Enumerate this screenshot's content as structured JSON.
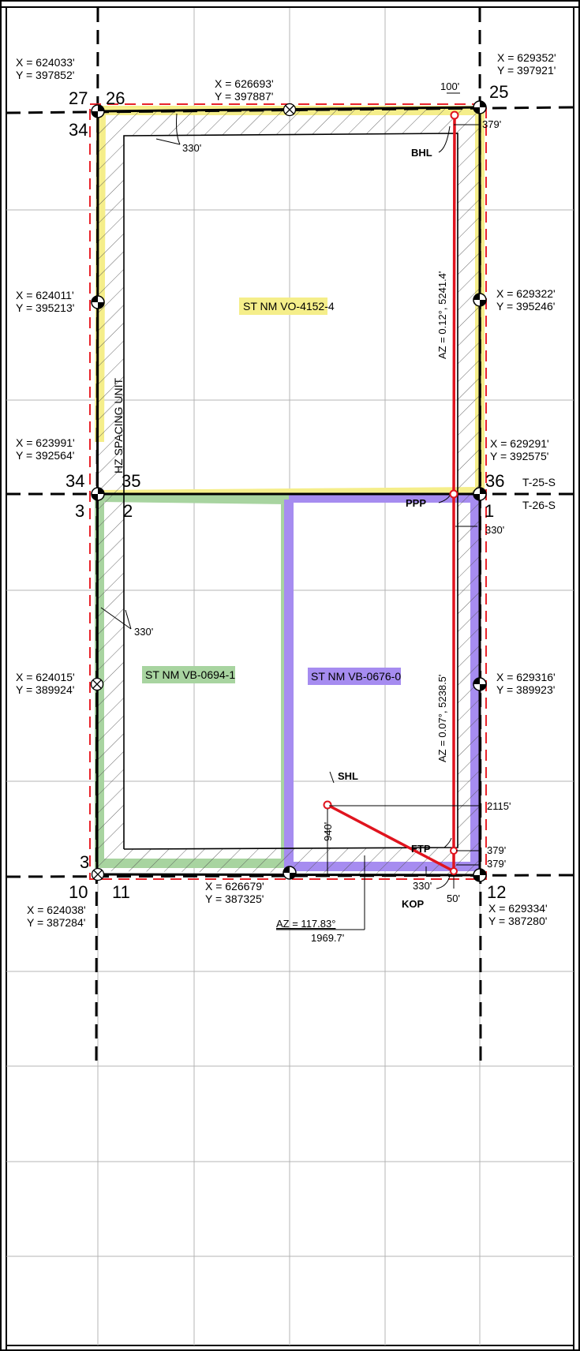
{
  "corners": {
    "nw": {
      "x": "X = 624033'",
      "y": "Y = 397852'"
    },
    "n_mid": {
      "x": "X = 626693'",
      "y": "Y = 397887'"
    },
    "ne": {
      "x": "X = 629352'",
      "y": "Y = 397921'"
    },
    "w_upper": {
      "x": "X = 624011'",
      "y": "Y = 395213'"
    },
    "e_upper": {
      "x": "X = 629322'",
      "y": "Y = 395246'"
    },
    "w_mid": {
      "x": "X = 623991'",
      "y": "Y = 392564'"
    },
    "e_mid": {
      "x": "X = 629291'",
      "y": "Y = 392575'"
    },
    "w_lower": {
      "x": "X = 624015'",
      "y": "Y = 389924'"
    },
    "e_lower": {
      "x": "X = 629316'",
      "y": "Y = 389923'"
    },
    "sw": {
      "x": "X = 624038'",
      "y": "Y = 387284'"
    },
    "s_mid": {
      "x": "X = 626679'",
      "y": "Y = 387325'"
    },
    "se": {
      "x": "X = 629334'",
      "y": "Y = 387280'"
    }
  },
  "sections": {
    "s27": "27",
    "s26": "26",
    "s25": "25",
    "s34a": "34",
    "s34b": "34",
    "s35": "35",
    "s36": "36",
    "s3a": "3",
    "s2": "2",
    "s1": "1",
    "s3b": "3",
    "s10": "10",
    "s11": "11",
    "s12": "12"
  },
  "townships": {
    "north": "T-25-S",
    "south": "T-26-S"
  },
  "tracts": {
    "north": {
      "label": "ST NM VO-4152-4",
      "color": "#f5ee8a"
    },
    "southwest": {
      "label": "ST NM VB-0694-1",
      "color": "#a8d4a0"
    },
    "southeast": {
      "label": "ST NM VB-0676-0",
      "color": "#a68cf0"
    }
  },
  "spacing_unit_label": "HZ SPACING UNIT",
  "points": {
    "bhl": "BHL",
    "ppp": "PPP",
    "shl": "SHL",
    "ftp": "FTP",
    "kop": "KOP"
  },
  "dimensions": {
    "top_setback": "330'",
    "bhl_from_east": "100'",
    "bhl_from_north": "379'",
    "ppp_east": "330'",
    "left_setback": "330'",
    "shl_from_east": "2115'",
    "shl_from_south": "940'",
    "ftp_from_south": "379'",
    "kop_from_south": "379'",
    "kop_bottom": "330'",
    "kop_from_east": "50'",
    "az_upper": "AZ = 0.12°, 5241.4'",
    "az_lower": "AZ = 0.07°, 5238.5'",
    "az_surface": "AZ = 117.83°",
    "az_surface_len": "1969.7'"
  },
  "colors": {
    "wellbore": "#e0141e",
    "lease_boundary": "#e8232a",
    "grid": "#b4b4b4"
  }
}
